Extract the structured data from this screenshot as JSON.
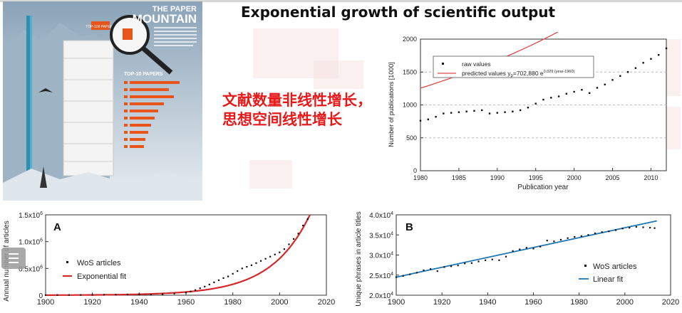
{
  "title": "Exponential growth of scientific output",
  "red_text": {
    "line1": "文献数量非线性增长，",
    "line2": "思想空间线性增长"
  },
  "poster": {
    "title_line1": "THE PAPER",
    "title_line2": "MOUNTAIN",
    "top_tag": "TOP-100 PAPERS",
    "top10": "TOP-10 PAPERS"
  },
  "colors": {
    "red": "#e8191a",
    "fit_red": "#d62728",
    "fit_blue": "#1f77b4",
    "poster_bg": "#dfe7ee"
  },
  "chart_data": [
    {
      "type": "scatter",
      "xlabel": "Publication year",
      "ylabel": "Number of publications [1000]",
      "xlim": [
        1980,
        2012
      ],
      "ylim": [
        0,
        2000
      ],
      "xticks": [
        "1980",
        "1985",
        "1990",
        "1995",
        "2000",
        "2005",
        "2010"
      ],
      "yticks": [
        "0",
        "500",
        "1000",
        "1500",
        "2000"
      ],
      "grid": "horizontal dashed",
      "legend": "top-left",
      "series": [
        {
          "name": "raw values",
          "kind": "points",
          "x": [
            1980,
            1981,
            1982,
            1983,
            1984,
            1985,
            1986,
            1987,
            1988,
            1989,
            1990,
            1991,
            1992,
            1993,
            1994,
            1995,
            1996,
            1997,
            1998,
            1999,
            2000,
            2001,
            2002,
            2003,
            2004,
            2005,
            2006,
            2007,
            2008,
            2009,
            2010,
            2011,
            2012
          ],
          "y": [
            760,
            780,
            820,
            870,
            880,
            890,
            900,
            910,
            920,
            870,
            880,
            890,
            900,
            920,
            960,
            1020,
            1080,
            1110,
            1130,
            1170,
            1200,
            1230,
            1180,
            1260,
            1310,
            1380,
            1440,
            1500,
            1560,
            1640,
            1700,
            1760,
            1860
          ]
        },
        {
          "name": "predicted values y",
          "subscript": "p",
          "formula": "=702,880 e",
          "exponent": "0.029 (year-1960)",
          "kind": "curve",
          "a": 702.88,
          "b": 0.029,
          "t0": 1960,
          "x_range": [
            1980,
            2012
          ]
        }
      ]
    },
    {
      "type": "scatter",
      "label": "A",
      "ylabel": "Annual number of articles",
      "xlim": [
        1900,
        2020
      ],
      "ylim": [
        0,
        1500000
      ],
      "xticks": [
        "1900",
        "1920",
        "1940",
        "1960",
        "1980",
        "2000",
        "2020"
      ],
      "yticks": [
        {
          "value": 0,
          "base": "0"
        },
        {
          "value": 500000,
          "base": "0.5x10",
          "exp": "6"
        },
        {
          "value": 1000000,
          "base": "1.0x10",
          "exp": "6"
        },
        {
          "value": 1500000,
          "base": "1.5x10",
          "exp": "6"
        }
      ],
      "legend": "left",
      "series": [
        {
          "name": "WoS articles",
          "kind": "points",
          "x": [
            1900,
            1905,
            1910,
            1915,
            1920,
            1925,
            1930,
            1935,
            1940,
            1945,
            1950,
            1955,
            1960,
            1962,
            1964,
            1966,
            1968,
            1970,
            1972,
            1974,
            1976,
            1978,
            1980,
            1982,
            1984,
            1986,
            1988,
            1990,
            1992,
            1994,
            1996,
            1998,
            2000,
            2002,
            2004,
            2006,
            2008,
            2010,
            2012
          ],
          "y": [
            2000,
            3000,
            4000,
            5000,
            6000,
            8000,
            10000,
            13000,
            15000,
            12000,
            20000,
            30000,
            50000,
            70000,
            95000,
            130000,
            160000,
            200000,
            240000,
            280000,
            320000,
            350000,
            400000,
            450000,
            500000,
            530000,
            560000,
            600000,
            640000,
            680000,
            720000,
            760000,
            800000,
            860000,
            950000,
            1050000,
            1150000,
            1300000,
            1420000
          ]
        },
        {
          "name": "Exponential fit",
          "kind": "curve",
          "a": 1600,
          "b": 0.0606,
          "t0": 1900,
          "x_range": [
            1900,
            2013
          ]
        }
      ]
    },
    {
      "type": "scatter",
      "label": "B",
      "ylabel": "Unique phrases in article titles",
      "xlim": [
        1900,
        2020
      ],
      "ylim": [
        20000,
        40000
      ],
      "xticks": [
        "1900",
        "1920",
        "1940",
        "1960",
        "1980",
        "2000",
        "2020"
      ],
      "yticks": [
        {
          "value": 20000,
          "base": "2.0x10",
          "exp": "4"
        },
        {
          "value": 25000,
          "base": "2.5x10",
          "exp": "4"
        },
        {
          "value": 30000,
          "base": "3.0x10",
          "exp": "4"
        },
        {
          "value": 35000,
          "base": "3.5x10",
          "exp": "4"
        },
        {
          "value": 40000,
          "base": "4.0x10",
          "exp": "4"
        }
      ],
      "legend": "bottom-right",
      "series": [
        {
          "name": "WoS articles",
          "kind": "points",
          "x": [
            1900,
            1903,
            1906,
            1909,
            1912,
            1915,
            1918,
            1921,
            1924,
            1927,
            1930,
            1933,
            1936,
            1939,
            1942,
            1945,
            1948,
            1951,
            1954,
            1957,
            1960,
            1963,
            1966,
            1969,
            1972,
            1975,
            1978,
            1981,
            1984,
            1987,
            1990,
            1993,
            1996,
            1999,
            2002,
            2005,
            2008,
            2011,
            2013
          ],
          "y": [
            24500,
            24800,
            25200,
            25600,
            26200,
            26500,
            26000,
            27000,
            27200,
            27400,
            27900,
            28000,
            28400,
            28700,
            28900,
            28700,
            29600,
            31000,
            31400,
            31800,
            31600,
            32100,
            33600,
            33400,
            33800,
            34200,
            34500,
            34700,
            35000,
            35400,
            35700,
            35900,
            36200,
            36600,
            36800,
            37000,
            36900,
            36800,
            36700
          ]
        },
        {
          "name": "Linear fit",
          "kind": "line",
          "x": [
            1900,
            2014
          ],
          "y": [
            24500,
            38500
          ]
        }
      ]
    }
  ]
}
